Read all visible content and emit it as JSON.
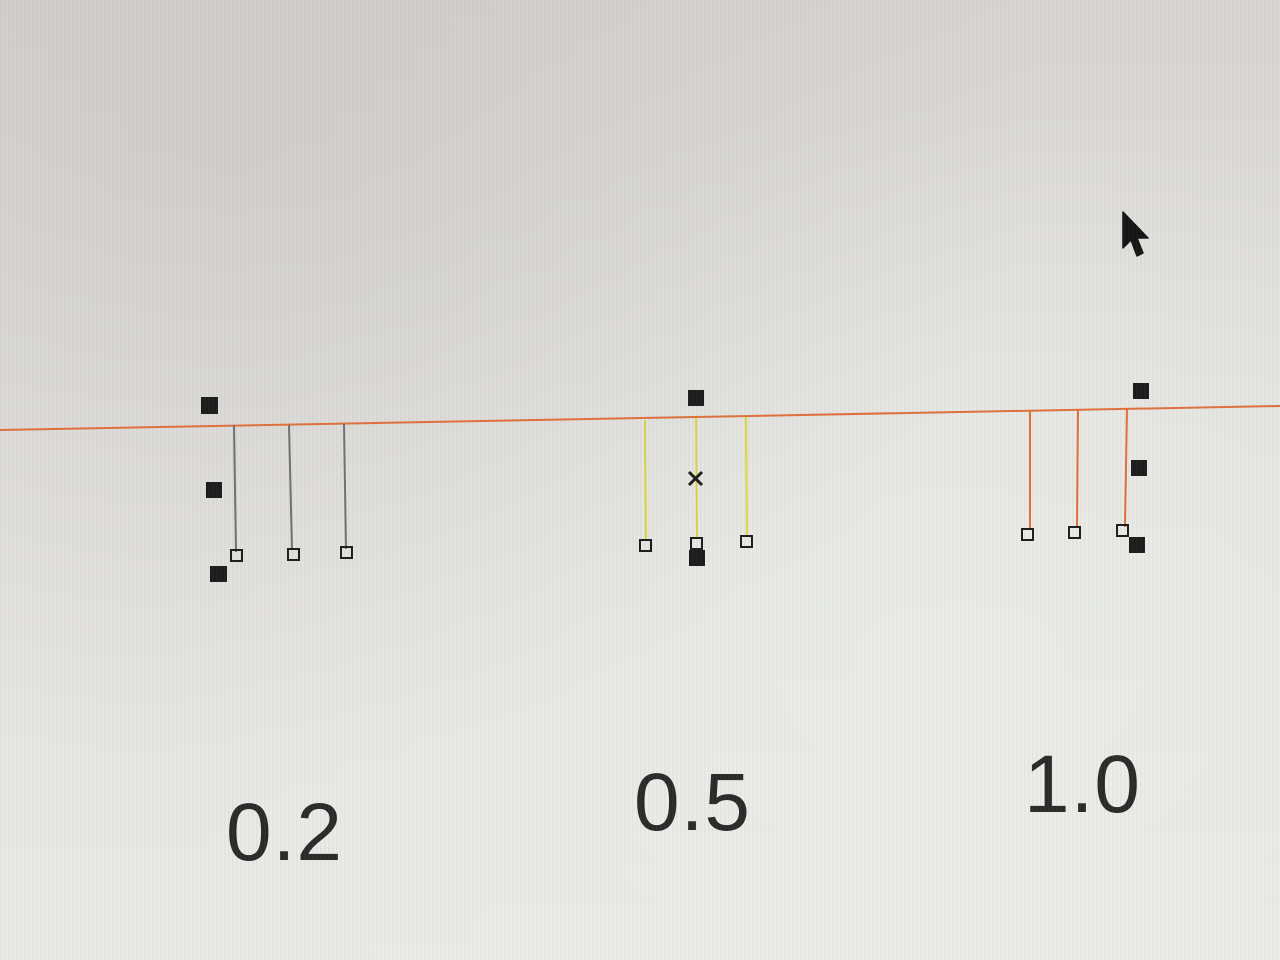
{
  "colors": {
    "baseline": "#e0703c",
    "group_1_stems": "#6f6f78",
    "group_2_stems": "#dcd840",
    "group_3_stems": "#e0703c",
    "markers": "#1c1c1c"
  },
  "groups": [
    {
      "label": "0.2"
    },
    {
      "label": "0.5"
    },
    {
      "label": "1.0"
    }
  ],
  "cursor": {
    "icon": "arrow-pointer-icon"
  }
}
